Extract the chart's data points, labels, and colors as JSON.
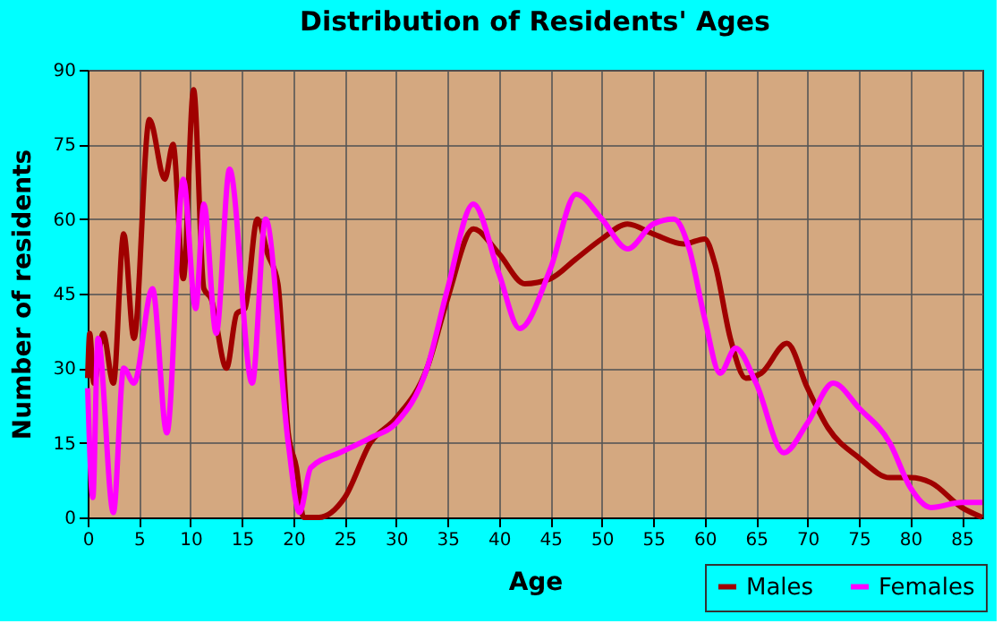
{
  "chart_data": {
    "type": "line",
    "title": "Distribution of Residents' Ages",
    "xlabel": "Age",
    "ylabel": "Number of residents",
    "xlim": [
      0,
      87
    ],
    "xticks": [
      0,
      5,
      10,
      15,
      20,
      25,
      30,
      35,
      40,
      45,
      50,
      55,
      60,
      65,
      70,
      75,
      80,
      85
    ],
    "ylim": [
      0,
      90
    ],
    "yticks": [
      0,
      15,
      30,
      45,
      60,
      75,
      90
    ],
    "grid": true,
    "legend": "bottom right",
    "marker": "none",
    "line_style": "solid",
    "series": [
      {
        "name": "Males",
        "color": "#a00000",
        "x": [
          0,
          0.2,
          0.6,
          1.5,
          2.5,
          3.5,
          4.5,
          6,
          7.5,
          8.3,
          9.3,
          10.3,
          11.3,
          12,
          13.5,
          14.5,
          15.3,
          16.5,
          17.5,
          18.5,
          19.5,
          20.3,
          21,
          22.5,
          25,
          27.5,
          30,
          33,
          35,
          37.5,
          40,
          42.5,
          45,
          47.5,
          50,
          52.5,
          55,
          58,
          60,
          61,
          62.5,
          64,
          65.5,
          68,
          70,
          72,
          75,
          78,
          80,
          82,
          85,
          87
        ],
        "values": [
          28,
          37,
          27,
          37,
          27,
          57,
          36,
          80,
          68,
          75,
          48,
          86,
          46,
          44,
          30,
          41,
          42,
          60,
          53,
          47,
          17,
          10,
          0,
          0,
          4,
          15,
          20,
          30,
          44,
          58,
          53,
          47,
          48,
          52,
          56,
          59,
          57,
          55,
          56,
          51,
          36,
          28,
          29,
          35,
          26,
          18,
          12,
          8,
          8,
          7,
          2,
          0
        ]
      },
      {
        "name": "Females",
        "color": "#ff00ff",
        "x": [
          0,
          0.5,
          1,
          2.5,
          3.5,
          4.5,
          6.3,
          7.7,
          9.3,
          10.5,
          11.3,
          12.5,
          13.8,
          16,
          17.3,
          19.5,
          20.6,
          21.7,
          24.5,
          27.5,
          30,
          33,
          35,
          37.5,
          40,
          42,
          45,
          47.5,
          50,
          52.5,
          55,
          57,
          58.5,
          60,
          61.5,
          63,
          65,
          67.7,
          70,
          72.5,
          75,
          78,
          80,
          82,
          85,
          87
        ],
        "values": [
          26,
          4,
          36,
          1,
          30,
          27,
          46,
          17,
          68,
          42,
          63,
          37,
          70,
          27,
          60,
          15,
          1,
          10,
          13,
          16,
          19,
          30,
          46,
          63,
          49,
          38,
          50,
          65,
          60,
          54,
          59,
          60,
          54,
          40,
          29,
          34,
          27,
          13,
          19,
          27,
          22,
          15,
          6,
          2,
          3,
          3
        ]
      }
    ]
  }
}
